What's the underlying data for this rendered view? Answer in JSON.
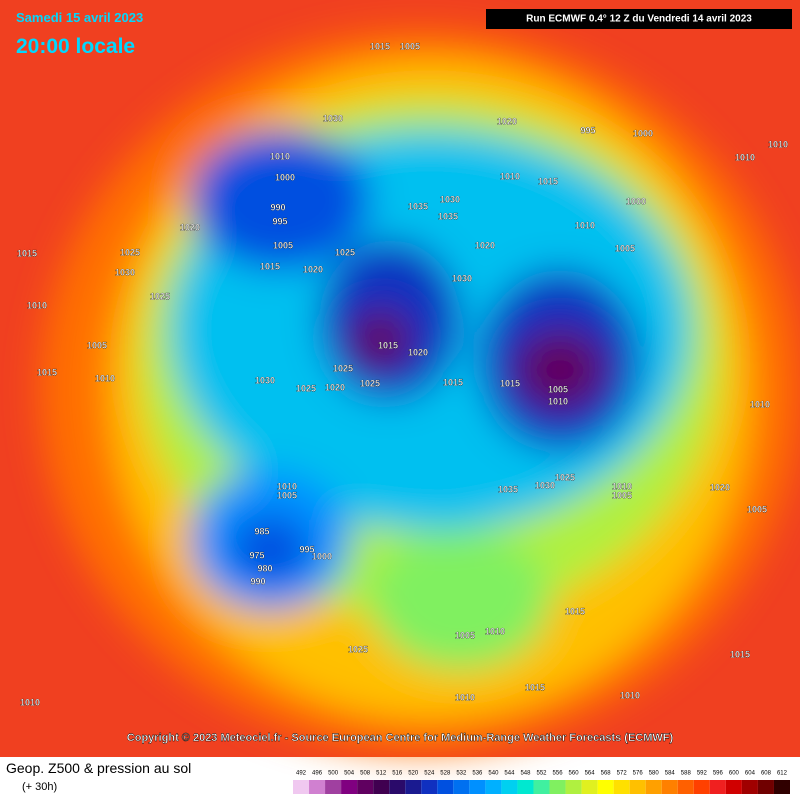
{
  "header": {
    "date": "Samedi 15 avril 2023",
    "time": "20:00 locale",
    "run": "Run ECMWF 0.4° 12 Z du Vendredi 14 avril 2023"
  },
  "map": {
    "isobar_labels": [
      1015,
      1005,
      1010,
      1000,
      990,
      995,
      1005,
      1015,
      1020,
      1025,
      1030,
      1020,
      995,
      1000,
      1010,
      1010,
      1010,
      1015,
      1000,
      1010,
      1005,
      1035,
      1030,
      1035,
      1020,
      1030,
      1015,
      1020,
      1025,
      1025,
      1015,
      1015,
      1005,
      1010,
      1030,
      1025,
      1020,
      1020,
      1025,
      1030,
      1025,
      1015,
      1010,
      1005,
      1015,
      1010,
      985,
      975,
      980,
      990,
      995,
      1000,
      1010,
      1005,
      1035,
      1030,
      1025,
      1010,
      1005,
      1015,
      1005,
      1010,
      1025,
      1015,
      1010,
      1010,
      1010,
      1015,
      1020,
      1010,
      1005
    ],
    "copyright": "Copyright © 2023 Meteociel.fr - Source European Centre for Medium-Range Weather Forecasts (ECMWF)"
  },
  "legend": {
    "title": "Geop. Z500 & pression au sol",
    "lead": "(+ 30h)",
    "scale": {
      "values": [
        492,
        496,
        500,
        504,
        508,
        512,
        516,
        520,
        524,
        528,
        532,
        536,
        540,
        544,
        548,
        552,
        556,
        560,
        564,
        568,
        572,
        576,
        580,
        584,
        588,
        592,
        596,
        600,
        604,
        608,
        612
      ],
      "colors": [
        "#f0c8f0",
        "#d080d0",
        "#a040a0",
        "#800080",
        "#600060",
        "#400050",
        "#2a0a6a",
        "#1a1a90",
        "#1030c0",
        "#0050e0",
        "#0070f0",
        "#0090ff",
        "#00b0ff",
        "#00d0f0",
        "#00e8d0",
        "#40f0a0",
        "#80f060",
        "#b0f040",
        "#e0f020",
        "#ffff00",
        "#ffe000",
        "#ffc000",
        "#ffa000",
        "#ff8000",
        "#ff6000",
        "#ff4000",
        "#f02020",
        "#d00000",
        "#a00000",
        "#700000",
        "#300000"
      ]
    }
  }
}
